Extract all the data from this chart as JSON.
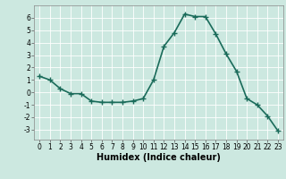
{
  "x": [
    0,
    1,
    2,
    3,
    4,
    5,
    6,
    7,
    8,
    9,
    10,
    11,
    12,
    13,
    14,
    15,
    16,
    17,
    18,
    19,
    20,
    21,
    22,
    23
  ],
  "y": [
    1.3,
    1.0,
    0.3,
    -0.1,
    -0.1,
    -0.7,
    -0.8,
    -0.8,
    -0.8,
    -0.7,
    -0.5,
    1.0,
    3.7,
    4.8,
    6.3,
    6.1,
    6.1,
    4.7,
    3.1,
    1.7,
    -0.5,
    -1.0,
    -1.9,
    -3.1
  ],
  "line_color": "#1a6b5a",
  "marker": "+",
  "marker_size": 4,
  "linewidth": 1.2,
  "xlabel": "Humidex (Indice chaleur)",
  "xlabel_fontsize": 7,
  "background_color": "#cce8e0",
  "grid_color": "#ffffff",
  "xlim": [
    -0.5,
    23.5
  ],
  "ylim": [
    -3.8,
    7.0
  ],
  "yticks": [
    -3,
    -2,
    -1,
    0,
    1,
    2,
    3,
    4,
    5,
    6
  ],
  "xticks": [
    0,
    1,
    2,
    3,
    4,
    5,
    6,
    7,
    8,
    9,
    10,
    11,
    12,
    13,
    14,
    15,
    16,
    17,
    18,
    19,
    20,
    21,
    22,
    23
  ],
  "tick_fontsize": 5.5,
  "ylabel_fontsize": 6
}
